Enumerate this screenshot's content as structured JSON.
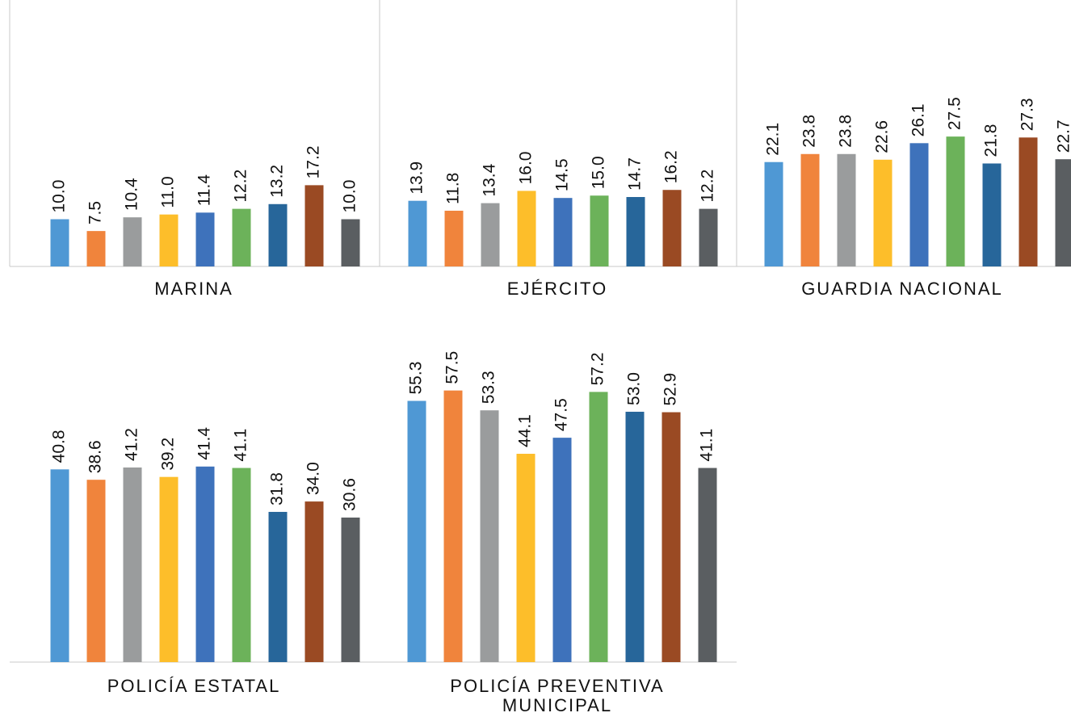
{
  "chart_data": [
    {
      "type": "bar",
      "title": "MARINA",
      "values": [
        10.0,
        7.5,
        10.4,
        11.0,
        11.4,
        12.2,
        13.2,
        17.2,
        10.0
      ],
      "value_labels": [
        "10.0",
        "7.5",
        "10.4",
        "11.0",
        "11.4",
        "12.2",
        "13.2",
        "17.2",
        "10.0"
      ],
      "colors": [
        "#4f98d4",
        "#f0843c",
        "#9a9c9d",
        "#fdbe2a",
        "#3e72bb",
        "#6cb25a",
        "#27669a",
        "#9a4a23",
        "#5a5e61"
      ],
      "ylim": [
        0,
        60
      ]
    },
    {
      "type": "bar",
      "title": "EJÉRCITO",
      "values": [
        13.9,
        11.8,
        13.4,
        16.0,
        14.5,
        15.0,
        14.7,
        16.2,
        12.2
      ],
      "value_labels": [
        "13.9",
        "11.8",
        "13.4",
        "16.0",
        "14.5",
        "15.0",
        "14.7",
        "16.2",
        "12.2"
      ],
      "colors": [
        "#4f98d4",
        "#f0843c",
        "#9a9c9d",
        "#fdbe2a",
        "#3e72bb",
        "#6cb25a",
        "#27669a",
        "#9a4a23",
        "#5a5e61"
      ],
      "ylim": [
        0,
        60
      ]
    },
    {
      "type": "bar",
      "title": "GUARDIA NACIONAL",
      "values": [
        22.1,
        23.8,
        23.8,
        22.6,
        26.1,
        27.5,
        21.8,
        27.3,
        22.7
      ],
      "value_labels": [
        "22.1",
        "23.8",
        "23.8",
        "22.6",
        "26.1",
        "27.5",
        "21.8",
        "27.3",
        "22.7"
      ],
      "colors": [
        "#4f98d4",
        "#f0843c",
        "#9a9c9d",
        "#fdbe2a",
        "#3e72bb",
        "#6cb25a",
        "#27669a",
        "#9a4a23",
        "#5a5e61"
      ],
      "ylim": [
        0,
        60
      ]
    },
    {
      "type": "bar",
      "title": "POLICÍA ESTATAL",
      "values": [
        40.8,
        38.6,
        41.2,
        39.2,
        41.4,
        41.1,
        31.8,
        34.0,
        30.6
      ],
      "value_labels": [
        "40.8",
        "38.6",
        "41.2",
        "39.2",
        "41.4",
        "41.1",
        "31.8",
        "34.0",
        "30.6"
      ],
      "colors": [
        "#4f98d4",
        "#f0843c",
        "#9a9c9d",
        "#fdbe2a",
        "#3e72bb",
        "#6cb25a",
        "#27669a",
        "#9a4a23",
        "#5a5e61"
      ],
      "ylim": [
        0,
        60
      ]
    },
    {
      "type": "bar",
      "title": "POLICÍA PREVENTIVA MUNICIPAL",
      "values": [
        55.3,
        57.5,
        53.3,
        44.1,
        47.5,
        57.2,
        53.0,
        52.9,
        41.1
      ],
      "value_labels": [
        "55.3",
        "57.5",
        "53.3",
        "44.1",
        "47.5",
        "57.2",
        "53.0",
        "52.9",
        "41.1"
      ],
      "colors": [
        "#4f98d4",
        "#f0843c",
        "#9a9c9d",
        "#fdbe2a",
        "#3e72bb",
        "#6cb25a",
        "#27669a",
        "#9a4a23",
        "#5a5e61"
      ],
      "ylim": [
        0,
        60
      ]
    }
  ]
}
